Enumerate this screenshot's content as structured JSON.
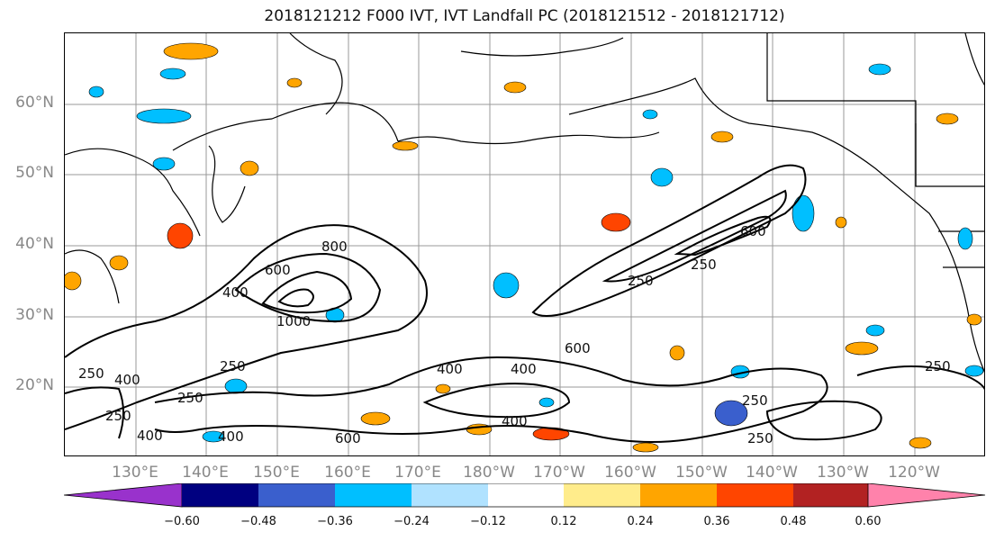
{
  "title": "2018121212 F000 IVT, IVT Landfall PC (2018121512 - 2018121712)",
  "map": {
    "lat_labels": [
      "60°N",
      "50°N",
      "40°N",
      "30°N",
      "20°N"
    ],
    "lon_labels": [
      "130°E",
      "140°E",
      "150°E",
      "160°E",
      "170°E",
      "180°W",
      "170°W",
      "160°W",
      "150°W",
      "140°W",
      "130°W",
      "120°W"
    ],
    "contour_labels": [
      "600",
      "800",
      "400",
      "1000",
      "250",
      "250",
      "400",
      "250",
      "400",
      "250",
      "400",
      "400",
      "600",
      "400",
      "600",
      "250",
      "250",
      "400",
      "600",
      "250",
      "250",
      "250"
    ]
  },
  "colorbar": {
    "colors": [
      "#9932cc",
      "#000080",
      "#3a5fcd",
      "#00bfff",
      "#b0e2ff",
      "#ffffff",
      "#ffec8b",
      "#ffa500",
      "#ff4500",
      "#b22222",
      "#ff82ab"
    ],
    "tick_labels": [
      "−0.60",
      "−0.48",
      "−0.36",
      "−0.24",
      "−0.12",
      "0.12",
      "0.24",
      "0.36",
      "0.48",
      "0.60"
    ]
  }
}
